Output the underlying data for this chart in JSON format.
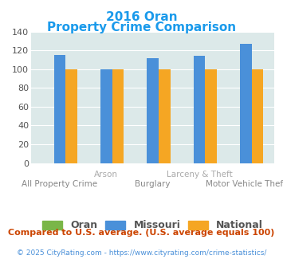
{
  "title_line1": "2016 Oran",
  "title_line2": "Property Crime Comparison",
  "categories": [
    "All Property Crime",
    "Arson",
    "Burglary",
    "Larceny & Theft",
    "Motor Vehicle Theft"
  ],
  "top_labels": [
    "",
    "Arson",
    "",
    "Larceny & Theft",
    ""
  ],
  "bottom_labels": [
    "All Property Crime",
    "",
    "Burglary",
    "",
    "Motor Vehicle Theft"
  ],
  "oran_values": [
    0,
    0,
    0,
    0,
    0
  ],
  "missouri_values": [
    115,
    100,
    112,
    114,
    127
  ],
  "national_values": [
    100,
    100,
    100,
    100,
    100
  ],
  "oran_color": "#7ab648",
  "missouri_color": "#4a90d9",
  "national_color": "#f5a623",
  "background_color": "#dce9e9",
  "ylim": [
    0,
    140
  ],
  "yticks": [
    0,
    20,
    40,
    60,
    80,
    100,
    120,
    140
  ],
  "title_color": "#1a9aeb",
  "label_color_top": "#aaaaaa",
  "label_color_bot": "#888888",
  "footnote1": "Compared to U.S. average. (U.S. average equals 100)",
  "footnote2": "© 2025 CityRating.com - https://www.cityrating.com/crime-statistics/",
  "footnote1_color": "#cc4400",
  "footnote2_color": "#4a90d9",
  "legend_labels": [
    "Oran",
    "Missouri",
    "National"
  ],
  "bar_width": 0.25
}
